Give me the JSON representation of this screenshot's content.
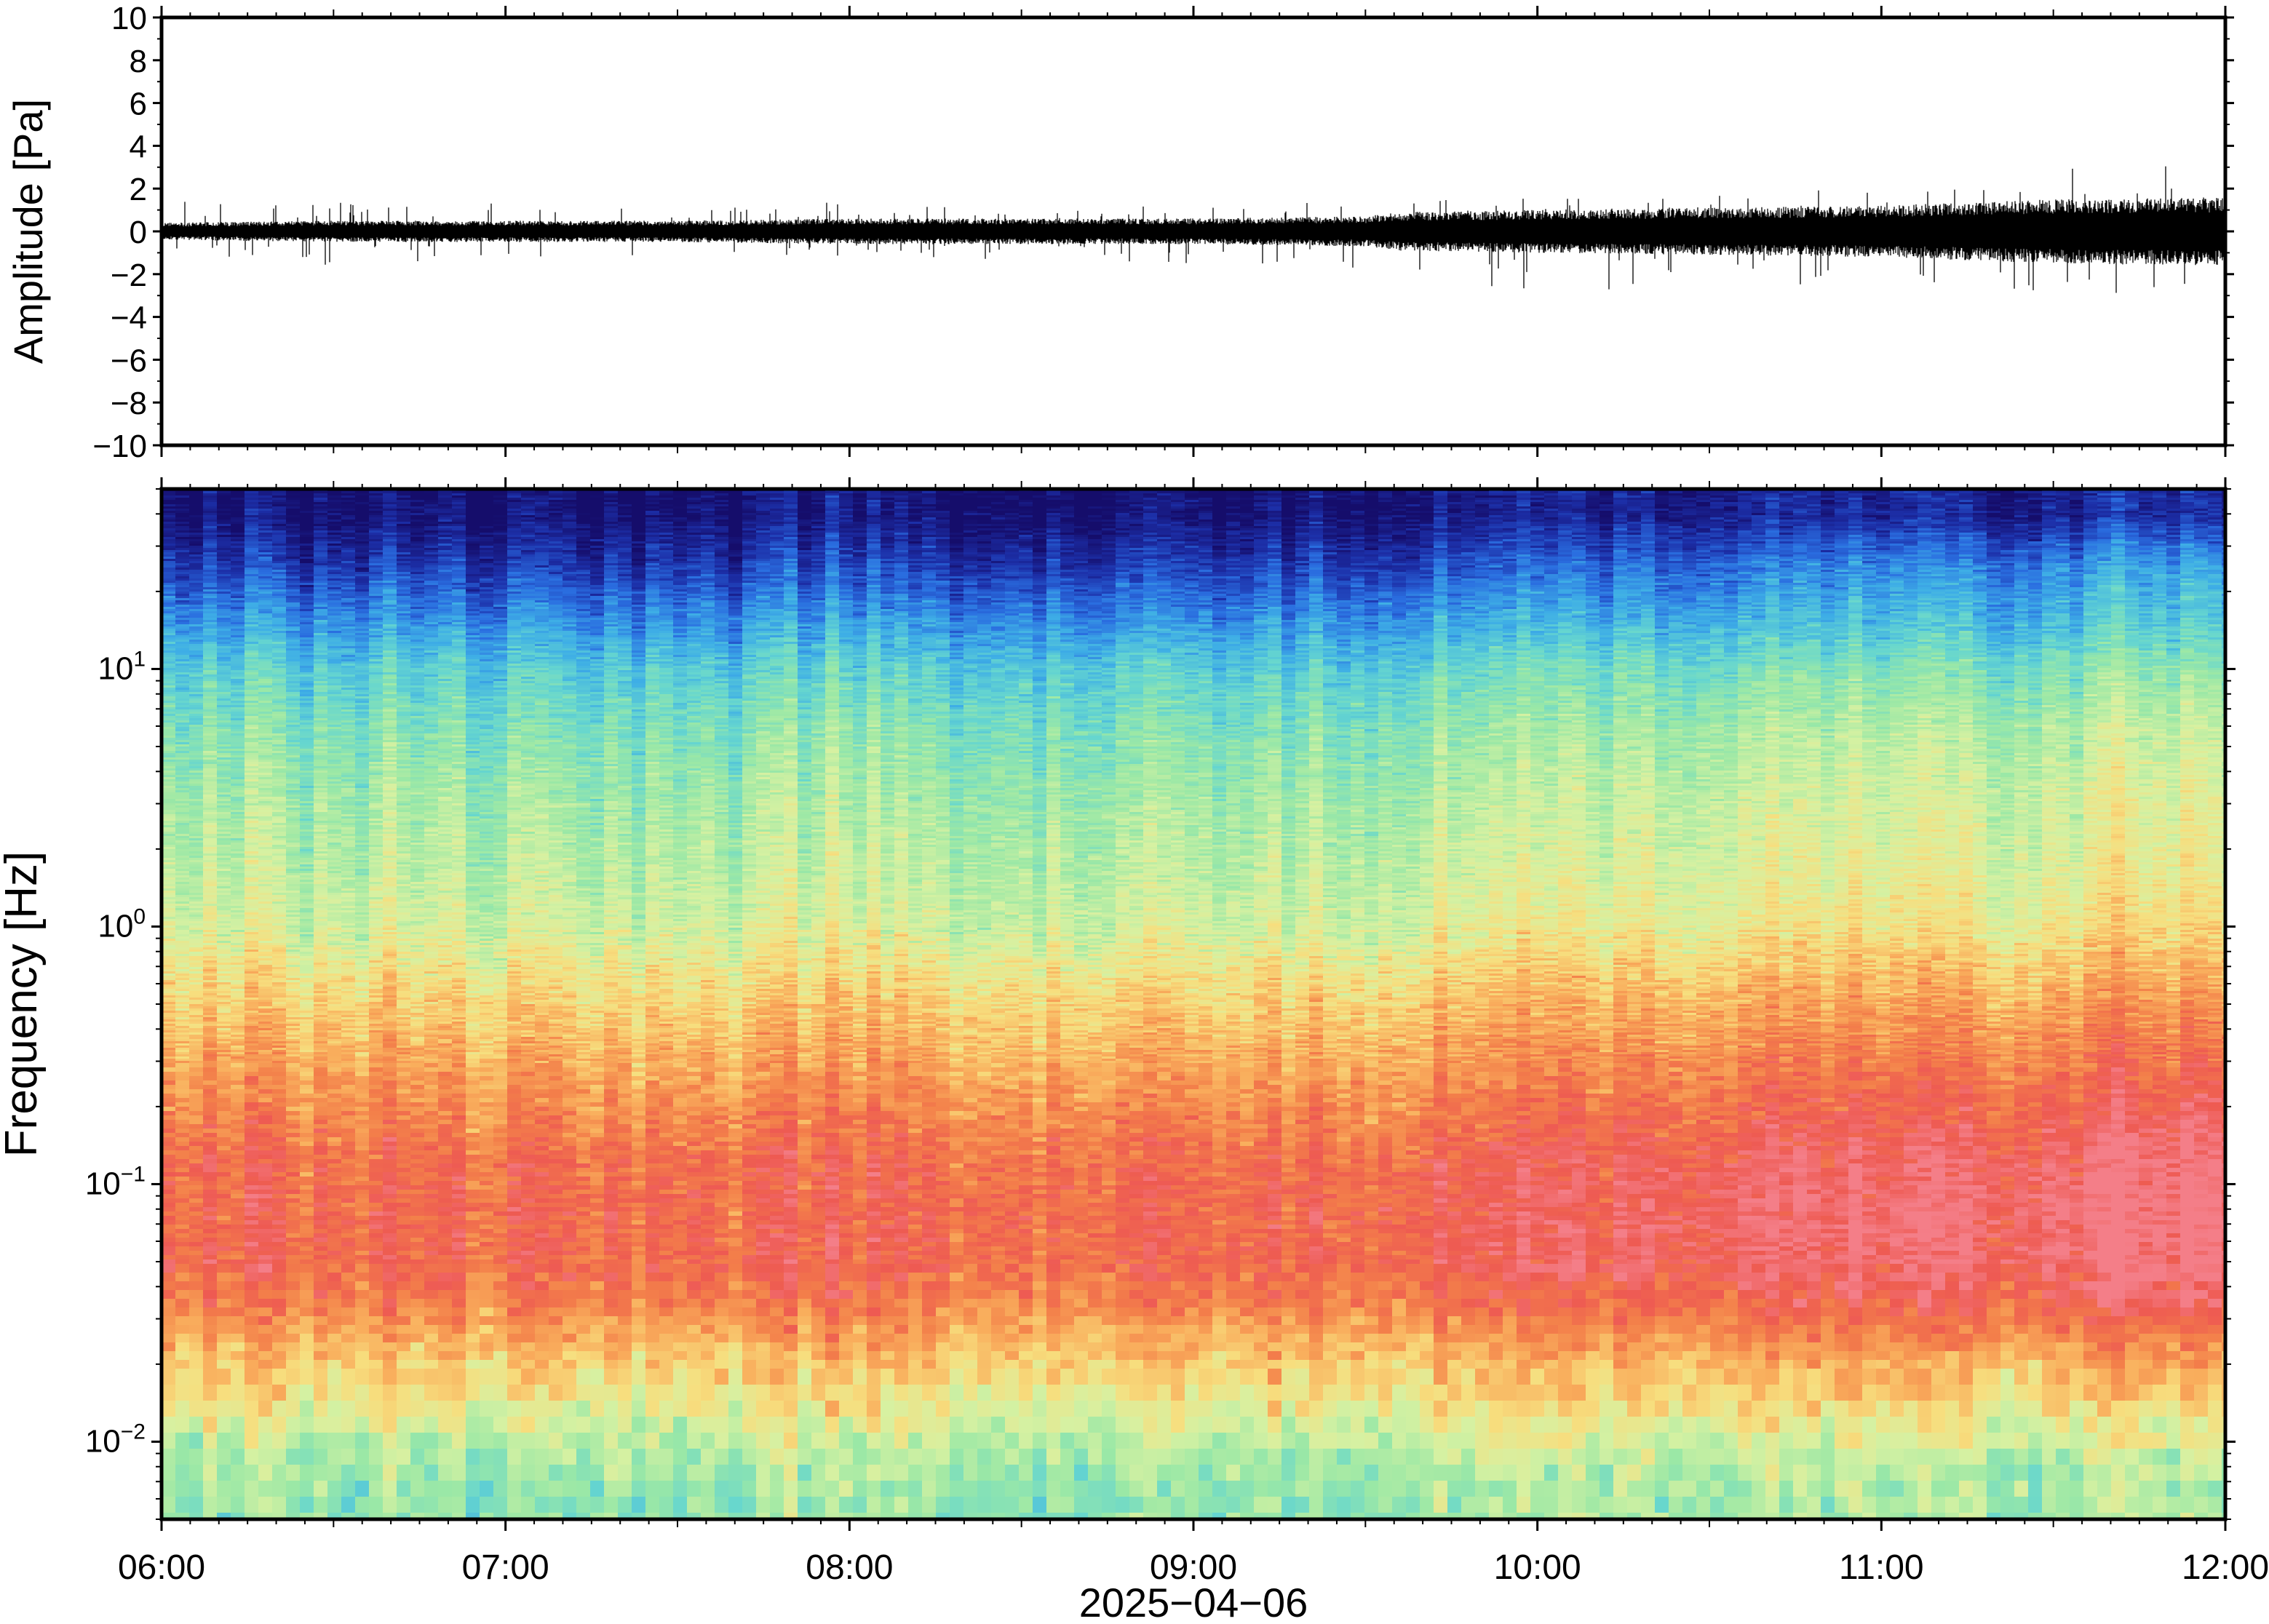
{
  "figure": {
    "date_label": "2025−04−06"
  },
  "chart_data": [
    {
      "type": "line",
      "id": "waveform",
      "ylabel": "Amplitude [Pa]",
      "xlabel": "",
      "xlim": [
        "06:00",
        "12:00"
      ],
      "ylim": [
        -10,
        10
      ],
      "yticks": [
        10,
        8,
        6,
        4,
        2,
        0,
        -2,
        -4,
        -6,
        -8,
        -10
      ],
      "ytick_labels": [
        "10",
        "8",
        "6",
        "4",
        "2",
        "0",
        "−2",
        "−4",
        "−6",
        "−8",
        "−10"
      ],
      "series": [
        {
          "color": "#000000",
          "envelope": {
            "x": [
              "06:00",
              "06:30",
              "07:00",
              "07:30",
              "08:00",
              "08:30",
              "09:00",
              "09:30",
              "09:36",
              "10:00",
              "10:30",
              "11:00",
              "11:30",
              "12:00"
            ],
            "typical_half_range": [
              0.4,
              0.5,
              0.5,
              0.5,
              0.6,
              0.6,
              0.6,
              0.7,
              0.9,
              1.0,
              1.1,
              1.2,
              1.5,
              1.6
            ],
            "peak_max": [
              1.5,
              1.4,
              1.3,
              1.2,
              1.4,
              1.2,
              1.2,
              1.5,
              1.6,
              1.6,
              1.8,
              2.2,
              3.0,
              3.6
            ],
            "peak_min": [
              -1.0,
              -1.6,
              -1.2,
              -1.8,
              -1.2,
              -1.4,
              -1.6,
              -1.8,
              -2.2,
              -3.0,
              -2.5,
              -3.0,
              -3.2,
              -3.2
            ]
          }
        }
      ]
    },
    {
      "type": "heatmap",
      "id": "spectrogram",
      "ylabel": "Frequency [Hz]",
      "xlabel": "2025−04−06",
      "xlim": [
        "06:00",
        "12:00"
      ],
      "xtick_labels": [
        "06:00",
        "07:00",
        "08:00",
        "09:00",
        "10:00",
        "11:00",
        "12:00"
      ],
      "ylim": [
        0.005,
        50
      ],
      "yscale": "log",
      "yticks": [
        {
          "base": "10",
          "exp": "1"
        },
        {
          "base": "10",
          "exp": "0"
        },
        {
          "base": "10",
          "exp": "−1"
        },
        {
          "base": "10",
          "exp": "−2"
        }
      ],
      "colormap": "rainbow (blue = low power, red/pink = high power)",
      "colormap_stops": [
        "#150d6b",
        "#1c2fa8",
        "#2a6ee0",
        "#3eaee6",
        "#66d6cf",
        "#9be8a6",
        "#d6f1a2",
        "#f7de7e",
        "#f9ad5c",
        "#f37f4a",
        "#ee5a52",
        "#f47e88"
      ],
      "features": {
        "time_change": "09:37",
        "rows_freq_hz": [
          40,
          25,
          15,
          10,
          6,
          3,
          1.5,
          1,
          0.6,
          0.35,
          0.2,
          0.12,
          0.08,
          0.05,
          0.035,
          0.025,
          0.015,
          0.01,
          0.007
        ],
        "level_before": [
          0.02,
          0.12,
          0.25,
          0.35,
          0.42,
          0.48,
          0.52,
          0.55,
          0.64,
          0.72,
          0.8,
          0.87,
          0.88,
          0.88,
          0.82,
          0.72,
          0.6,
          0.5,
          0.45
        ],
        "level_after": [
          0.06,
          0.24,
          0.32,
          0.42,
          0.5,
          0.55,
          0.58,
          0.62,
          0.72,
          0.82,
          0.9,
          0.97,
          0.99,
          0.97,
          0.9,
          0.78,
          0.62,
          0.52,
          0.47
        ]
      }
    }
  ]
}
